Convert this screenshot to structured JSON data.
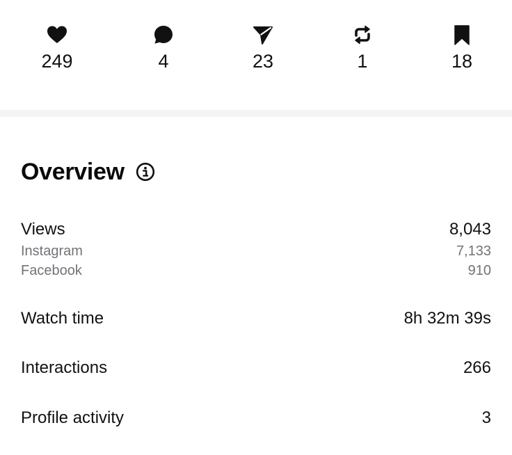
{
  "stats": {
    "likes": {
      "icon": "heart-icon",
      "count": "249"
    },
    "comments": {
      "icon": "comment-icon",
      "count": "4"
    },
    "shares": {
      "icon": "send-icon",
      "count": "23"
    },
    "reposts": {
      "icon": "repost-icon",
      "count": "1"
    },
    "saves": {
      "icon": "bookmark-icon",
      "count": "18"
    }
  },
  "overview": {
    "title": "Overview",
    "info_icon": "info-icon",
    "rows": {
      "views": {
        "label": "Views",
        "value": "8,043"
      },
      "instagram": {
        "label": "Instagram",
        "value": "7,133"
      },
      "facebook": {
        "label": "Facebook",
        "value": "910"
      },
      "watch_time": {
        "label": "Watch time",
        "value": "8h 32m 39s"
      },
      "interactions": {
        "label": "Interactions",
        "value": "266"
      },
      "profile": {
        "label": "Profile activity",
        "value": "3"
      }
    }
  },
  "colors": {
    "text_primary": "#111111",
    "text_secondary": "#707378",
    "divider": "#f3f4f6",
    "background": "#ffffff"
  }
}
